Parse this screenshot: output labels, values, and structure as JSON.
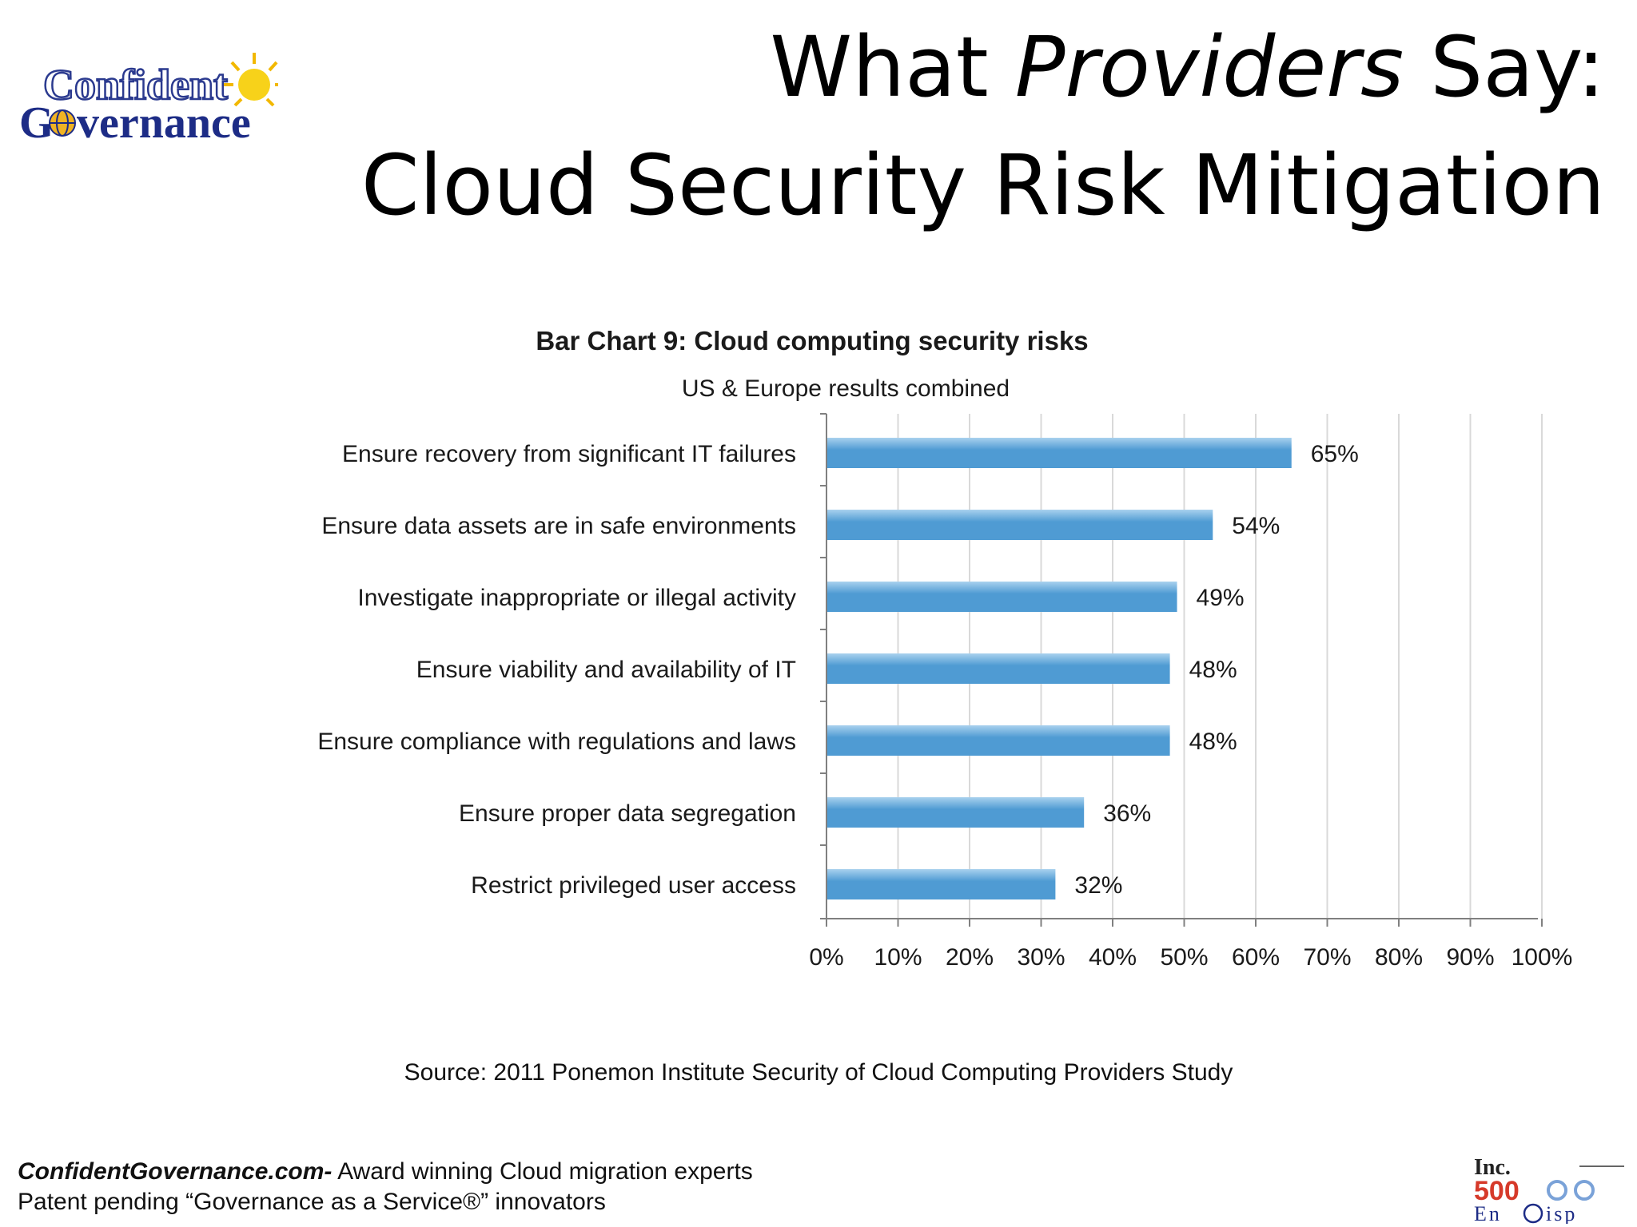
{
  "slide": {
    "title_part1": "What ",
    "title_italic": "Providers",
    "title_part2": " Say:",
    "title_line2": "Cloud Security Risk Mitigation"
  },
  "logo": {
    "line1": "Confident",
    "line2_prefix": "G",
    "line2_suffix": "vernance"
  },
  "source": "Source: 2011 Ponemon Institute  Security of Cloud Computing Providers Study",
  "footer": {
    "site": "ConfidentGovernance.com-",
    "tagline": " Award winning Cloud migration experts",
    "line2": "Patent pending  “Governance as a Service®” innovators"
  },
  "badge": {
    "line1": "Inc.",
    "line2": "500",
    "line3_prefix": "En",
    "line3_suffix": "isp"
  },
  "colors": {
    "bar": "#4f9bd3",
    "bar_highlight": "#a9d1ee",
    "grid": "#d9d9d9",
    "axis": "#808080"
  },
  "chart_data": {
    "type": "bar",
    "orientation": "horizontal",
    "title": "Bar Chart 9: Cloud computing security risks",
    "subtitle": "US & Europe results combined",
    "categories": [
      "Ensure recovery from significant IT failures",
      "Ensure data assets are in safe environments",
      "Investigate inappropriate or illegal activity",
      "Ensure viability and availability of IT",
      "Ensure compliance with regulations and laws",
      "Ensure proper data segregation",
      "Restrict privileged user access"
    ],
    "values": [
      65,
      54,
      49,
      48,
      48,
      36,
      32
    ],
    "value_labels": [
      "65%",
      "54%",
      "49%",
      "48%",
      "48%",
      "36%",
      "32%"
    ],
    "xlim": [
      0,
      100
    ],
    "x_ticks": [
      "0%",
      "10%",
      "20%",
      "30%",
      "40%",
      "50%",
      "60%",
      "70%",
      "80%",
      "90%",
      "100%"
    ],
    "grid": true,
    "legend": "none"
  }
}
